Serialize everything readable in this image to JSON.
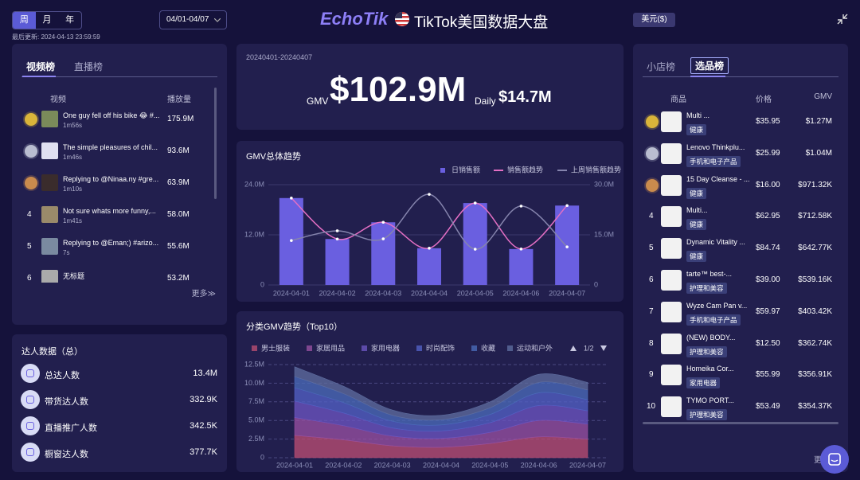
{
  "header": {
    "period_tabs": [
      "周",
      "月",
      "年"
    ],
    "date_range": "04/01-04/07",
    "last_update": "最后更新: 2024-04-13 23:59:59",
    "logo": "EchoTik",
    "title": "TikTok美国数据大盘",
    "currency": "美元($)"
  },
  "video_rank": {
    "tabs": [
      "视频榜",
      "直播榜"
    ],
    "columns": [
      "视频",
      "播放量"
    ],
    "rows": [
      {
        "title": "One guy fell off his bike 😂 #...",
        "duration": "1m56s",
        "plays": "175.9M"
      },
      {
        "title": "The simple pleasures of chil...",
        "duration": "1m46s",
        "plays": "93.6M"
      },
      {
        "title": "Replying to @Ninaa.ny #gre...",
        "duration": "1m10s",
        "plays": "63.9M"
      },
      {
        "rank": 4,
        "title": "Not sure whats more funny,...",
        "duration": "1m41s",
        "plays": "58.0M"
      },
      {
        "rank": 5,
        "title": "Replying to @Eman;) #arizo...",
        "duration": "7s",
        "plays": "55.6M"
      },
      {
        "rank": 6,
        "title": "无标题",
        "plays": "53.2M"
      }
    ],
    "more": "更多≫"
  },
  "creator_stats": {
    "title": "达人数据（总）",
    "items": [
      {
        "label": "总达人数",
        "value": "13.4M"
      },
      {
        "label": "带货达人数",
        "value": "332.9K"
      },
      {
        "label": "直播推广人数",
        "value": "342.5K"
      },
      {
        "label": "橱窗达人数",
        "value": "377.7K"
      }
    ]
  },
  "gmv_summary": {
    "period": "20240401-20240407",
    "gmv_label": "GMV",
    "gmv": "$102.9M",
    "daily_label": "Daily",
    "daily": "$14.7M"
  },
  "chart_data": [
    {
      "type": "combo",
      "title": "GMV总体趋势",
      "categories": [
        "2024-04-01",
        "2024-04-02",
        "2024-04-03",
        "2024-04-04",
        "2024-04-05",
        "2024-04-06",
        "2024-04-07"
      ],
      "ylim": [
        0,
        24000000
      ],
      "yticks": [
        0,
        {
          "value": 12000000,
          "label": "12.0M"
        },
        {
          "value": 24000000,
          "label": "24.0M"
        }
      ],
      "y2lim": [
        0,
        30000000
      ],
      "y2ticks": [
        0,
        {
          "value": 15000000,
          "label": "15.0M"
        },
        {
          "value": 30000000,
          "label": "30.0M"
        }
      ],
      "grid": true,
      "series": [
        {
          "name": "日销售额",
          "type": "bar",
          "color": "#6a5fe0",
          "values": [
            20800000,
            11000000,
            15000000,
            8800000,
            19600000,
            8600000,
            19000000
          ]
        },
        {
          "name": "销售额趋势",
          "type": "line",
          "color": "#e46fc4",
          "values": [
            20800000,
            11000000,
            15000000,
            8800000,
            19600000,
            8600000,
            19000000
          ]
        },
        {
          "name": "上周销售额趋势",
          "type": "line",
          "color": "#8584ad",
          "axis": "y2",
          "values": [
            13300000,
            16200000,
            13800000,
            27100000,
            10700000,
            23600000,
            11400000
          ]
        }
      ]
    },
    {
      "type": "area",
      "title": "分类GMV趋势（Top10）",
      "stacked": true,
      "grid": true,
      "legend_page": "1/2",
      "categories": [
        "2024-04-01",
        "2024-04-02",
        "2024-04-03",
        "2024-04-04",
        "2024-04-05",
        "2024-04-06",
        "2024-04-07"
      ],
      "ylim": [
        0,
        12500000
      ],
      "yticks": [
        0,
        {
          "value": 2500000,
          "label": "2.5M"
        },
        {
          "value": 5000000,
          "label": "5.0M"
        },
        {
          "value": 7500000,
          "label": "7.5M"
        },
        {
          "value": 10000000,
          "label": "10.0M"
        },
        {
          "value": 12500000,
          "label": "12.5M"
        }
      ],
      "series": [
        {
          "name": "男士服装",
          "color": "#b84d72",
          "values": [
            3000000,
            2400000,
            1600000,
            1400000,
            1900000,
            2800000,
            2500000
          ]
        },
        {
          "name": "家居用品",
          "color": "#9650a0",
          "values": [
            2400000,
            1900000,
            1300000,
            1200000,
            1500000,
            2200000,
            2000000
          ]
        },
        {
          "name": "家用电器",
          "color": "#6b55c0",
          "values": [
            2200000,
            1700000,
            1100000,
            1000000,
            1300000,
            2000000,
            1800000
          ]
        },
        {
          "name": "时尚配饰",
          "color": "#5260c4",
          "values": [
            1800000,
            1400000,
            900000,
            800000,
            1100000,
            1700000,
            1500000
          ]
        },
        {
          "name": "收藏",
          "color": "#4a6ab8",
          "values": [
            1500000,
            1200000,
            800000,
            700000,
            900000,
            1400000,
            1300000
          ]
        },
        {
          "name": "运动和户外",
          "color": "#5d6c9e",
          "values": [
            1300000,
            1000000,
            700000,
            600000,
            800000,
            1100000,
            1000000
          ]
        }
      ]
    }
  ],
  "product_rank": {
    "tabs": [
      "小店榜",
      "选品榜"
    ],
    "columns": [
      "商品",
      "价格",
      "GMV"
    ],
    "rows": [
      {
        "name": "Multi ...",
        "category": "健康",
        "price": "$35.95",
        "gmv": "$1.27M"
      },
      {
        "name": "Lenovo Thinkplu...",
        "category": "手机和电子产品",
        "price": "$25.99",
        "gmv": "$1.04M"
      },
      {
        "name": "15 Day Cleanse - ...",
        "category": "健康",
        "price": "$16.00",
        "gmv": "$971.32K"
      },
      {
        "rank": 4,
        "name": "Multi...",
        "category": "健康",
        "price": "$62.95",
        "gmv": "$712.58K"
      },
      {
        "rank": 5,
        "name": "Dynamic Vitality ...",
        "category": "健康",
        "price": "$84.74",
        "gmv": "$642.77K"
      },
      {
        "rank": 6,
        "name": "tarte™ best-...",
        "category": "护理和美容",
        "price": "$39.00",
        "gmv": "$539.16K"
      },
      {
        "rank": 7,
        "name": "Wyze Cam Pan v...",
        "category": "手机和电子产品",
        "price": "$59.97",
        "gmv": "$403.42K"
      },
      {
        "rank": 8,
        "name": "(NEW) BODY...",
        "category": "护理和美容",
        "price": "$12.50",
        "gmv": "$362.74K"
      },
      {
        "rank": 9,
        "name": "Homeika Cor...",
        "category": "家用电器",
        "price": "$55.99",
        "gmv": "$356.91K"
      },
      {
        "rank": 10,
        "name": "TYMO PORT...",
        "category": "护理和美容",
        "price": "$53.49",
        "gmv": "$354.37K"
      }
    ],
    "more": "更多≫"
  }
}
